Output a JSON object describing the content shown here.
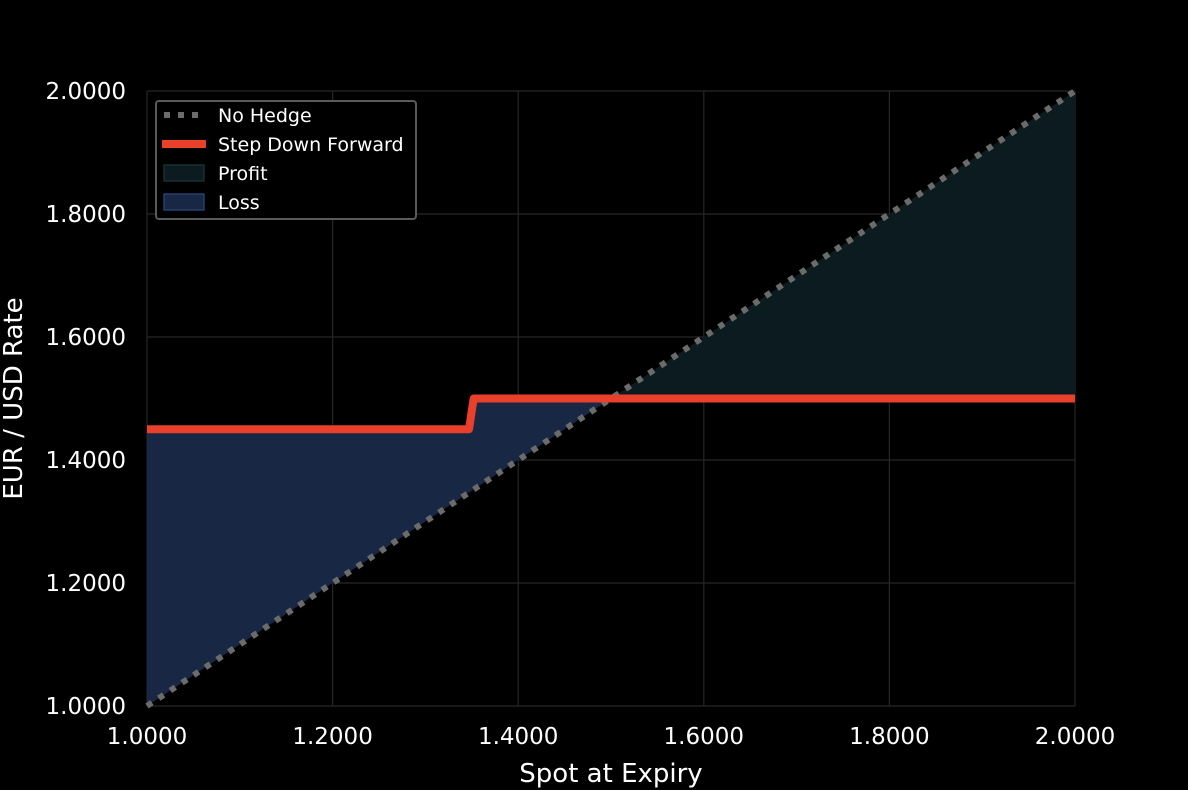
{
  "chart_data": {
    "type": "line",
    "title": "",
    "xlabel": "Spot at Expiry",
    "ylabel": "EUR / USD Rate",
    "xlim": [
      1.0,
      2.0
    ],
    "ylim": [
      1.0,
      2.0
    ],
    "xticks": [
      "1.0000",
      "1.2000",
      "1.4000",
      "1.6000",
      "1.8000",
      "2.0000"
    ],
    "yticks": [
      "1.0000",
      "1.2000",
      "1.4000",
      "1.6000",
      "1.8000",
      "2.0000"
    ],
    "grid": true,
    "legend_position": "top-left",
    "series": [
      {
        "name": "No Hedge",
        "style": "dotted",
        "color": "#6b6b6b",
        "points": [
          [
            1.0,
            1.0
          ],
          [
            2.0,
            2.0
          ]
        ]
      },
      {
        "name": "Step Down Forward",
        "style": "solid",
        "color": "#e8402a",
        "points": [
          [
            1.0,
            1.45
          ],
          [
            1.347,
            1.45
          ],
          [
            1.352,
            1.5
          ],
          [
            2.0,
            1.5
          ]
        ]
      }
    ],
    "areas": [
      {
        "name": "Profit",
        "color": "#0b1b1f",
        "edge": "#163033",
        "where": "spot above hedged rate"
      },
      {
        "name": "Loss",
        "color": "#172744",
        "edge": "#24406e",
        "where": "spot below hedged rate"
      }
    ]
  }
}
